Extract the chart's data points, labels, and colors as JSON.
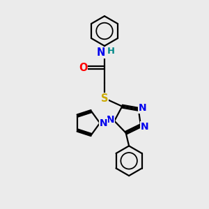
{
  "bg_color": "#ebebeb",
  "atom_colors": {
    "C": "#000000",
    "N": "#0000ee",
    "O": "#ff0000",
    "S": "#ccaa00",
    "H": "#008888"
  },
  "bond_color": "#000000",
  "line_width": 1.6,
  "font_size": 10.5
}
